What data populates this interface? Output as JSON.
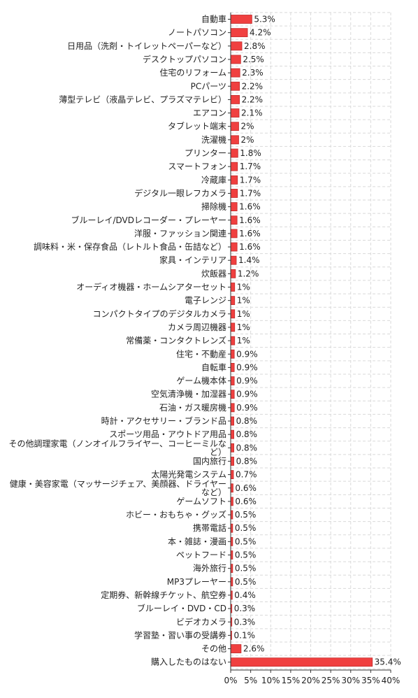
{
  "chart_data": {
    "type": "bar",
    "orientation": "horizontal",
    "categories": [
      "自動車",
      "ノートパソコン",
      "日用品（洗剤・トイレットペーパーなど）",
      "デスクトップパソコン",
      "住宅のリフォーム",
      "PCパーツ",
      "薄型テレビ（液晶テレビ、プラズマテレビ）",
      "エアコン",
      "タブレット端末",
      "洗濯機",
      "プリンター",
      "スマートフォン",
      "冷蔵庫",
      "デジタル一眼レフカメラ",
      "掃除機",
      "ブルーレイ/DVDレコーダー・プレーヤー",
      "洋服・ファッション関連",
      "調味料・米・保存食品（レトルト食品・缶詰など）",
      "家具・インテリア",
      "炊飯器",
      "オーディオ機器・ホームシアターセット",
      "電子レンジ",
      "コンパクトタイプのデジタルカメラ",
      "カメラ周辺機器",
      "常備薬・コンタクトレンズ",
      "住宅・不動産",
      "自転車",
      "ゲーム機本体",
      "空気清浄機・加湿器",
      "石油・ガス暖房機",
      "時計・アクセサリー・ブランド品",
      "スポーツ用品・アウトドア用品",
      "その他調理家電（ノンオイルフライヤー、コーヒーミルなど）",
      "国内旅行",
      "太陽光発電システム",
      "健康・美容家電（マッサージチェア、美顔器、ドライヤーなど）",
      "ゲームソフト",
      "ホビー・おもちゃ・グッズ",
      "携帯電話",
      "本・雑誌・漫画",
      "ペットフード",
      "海外旅行",
      "MP3プレーヤー",
      "定期券、新幹線チケット、航空券",
      "ブルーレイ・DVD・CD",
      "ビデオカメラ",
      "学習塾・習い事の受講券",
      "その他",
      "購入したものはない"
    ],
    "values": [
      5.3,
      4.2,
      2.8,
      2.5,
      2.3,
      2.2,
      2.2,
      2.1,
      2,
      2,
      1.8,
      1.7,
      1.7,
      1.7,
      1.6,
      1.6,
      1.6,
      1.6,
      1.4,
      1.2,
      1,
      1,
      1,
      1,
      1,
      0.9,
      0.9,
      0.9,
      0.9,
      0.9,
      0.8,
      0.8,
      0.8,
      0.8,
      0.7,
      0.6,
      0.6,
      0.5,
      0.5,
      0.5,
      0.5,
      0.5,
      0.5,
      0.4,
      0.3,
      0.3,
      0.1,
      2.6,
      35.4
    ],
    "value_suffix": "%",
    "xlim": [
      0,
      40
    ],
    "xticks": [
      0,
      5,
      10,
      15,
      20,
      25,
      30,
      35,
      40
    ],
    "xtick_labels": [
      "0%",
      "5%",
      "10%",
      "15%",
      "20%",
      "25%",
      "30%",
      "35%",
      "40%"
    ],
    "title": "",
    "xlabel": "",
    "ylabel": "",
    "grid": true,
    "legend": "none",
    "bar_color": "#f04040",
    "bar_edge_color": "#c02828"
  }
}
